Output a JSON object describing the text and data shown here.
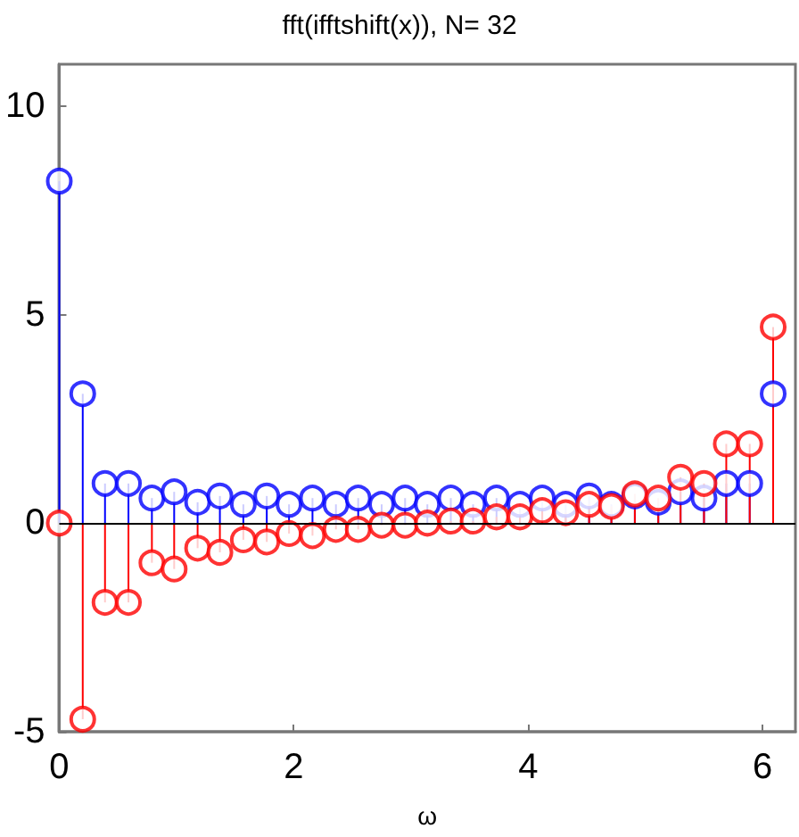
{
  "chart_data": {
    "type": "lollipop",
    "title": "fft(ifftshift(x)), N= 32",
    "xlabel": "ω",
    "x": [
      0,
      0.2,
      0.39,
      0.59,
      0.79,
      0.98,
      1.18,
      1.37,
      1.57,
      1.77,
      1.96,
      2.16,
      2.36,
      2.55,
      2.75,
      2.95,
      3.14,
      3.34,
      3.53,
      3.73,
      3.93,
      4.12,
      4.32,
      4.52,
      4.71,
      4.91,
      5.11,
      5.3,
      5.5,
      5.69,
      5.89,
      6.09
    ],
    "series": [
      {
        "color": "#0000ff",
        "values": [
          8.2,
          3.1,
          0.95,
          0.95,
          0.6,
          0.75,
          0.5,
          0.65,
          0.45,
          0.65,
          0.45,
          0.6,
          0.45,
          0.6,
          0.45,
          0.6,
          0.45,
          0.6,
          0.45,
          0.6,
          0.45,
          0.6,
          0.45,
          0.65,
          0.45,
          0.65,
          0.5,
          0.75,
          0.6,
          0.95,
          0.95,
          3.1
        ]
      },
      {
        "color": "#ff0000",
        "values": [
          0,
          -4.7,
          -1.9,
          -1.9,
          -0.95,
          -1.1,
          -0.6,
          -0.7,
          -0.4,
          -0.45,
          -0.25,
          -0.3,
          -0.15,
          -0.15,
          -0.05,
          -0.05,
          0,
          0.05,
          0.05,
          0.15,
          0.15,
          0.3,
          0.25,
          0.45,
          0.4,
          0.7,
          0.6,
          1.1,
          0.95,
          1.9,
          1.9,
          4.7
        ]
      }
    ],
    "xlim": [
      0,
      6.28
    ],
    "xticks": [
      0,
      2,
      4,
      6
    ],
    "ylim": [
      -5,
      11
    ],
    "yticks": [
      -5,
      0,
      5,
      10
    ],
    "marker": "circle",
    "grid": false,
    "ref_lines": [
      {
        "axis": "y",
        "value": 0,
        "color": "#000000"
      }
    ]
  }
}
